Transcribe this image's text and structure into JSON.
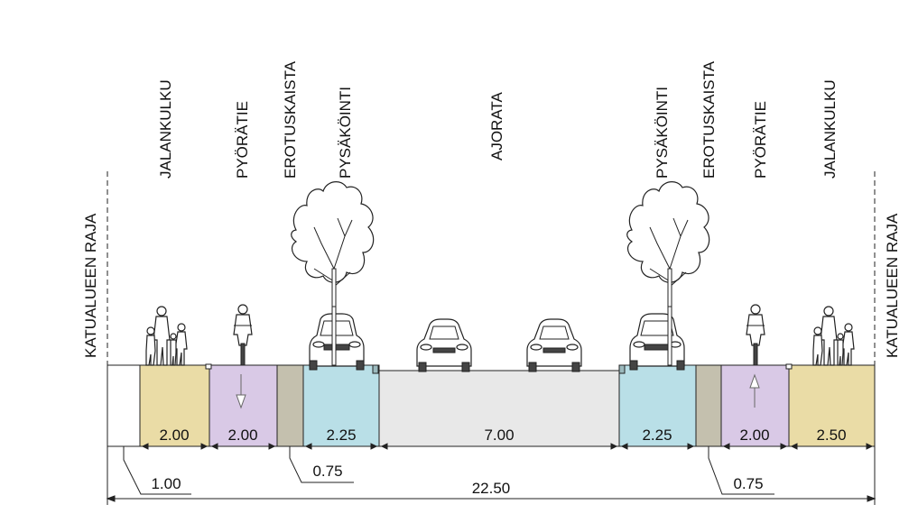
{
  "colors": {
    "sidewalk": "#eadca6",
    "bike": "#d9c9e6",
    "divider": "#c4c0ae",
    "parking": "#b9dfe7",
    "road": "#e8e8e8",
    "verge": "#ffffff",
    "line": "#222222"
  },
  "top_labels": {
    "boundary_left": "KATUALUEEN RAJA",
    "sidewalk_left": "JALANKULKU",
    "bike_left": "PYÖRÄTIE",
    "divider_left": "EROTUSKAISTA",
    "parking_left": "PYSÄKÖINTI",
    "road": "AJORATA",
    "parking_right": "PYSÄKÖINTI",
    "divider_right": "EROTUSKAISTA",
    "bike_right": "PYÖRÄTIE",
    "sidewalk_right": "JALANKULKU",
    "boundary_right": "KATUALUEEN RAJA"
  },
  "widths": {
    "verge_left": "1.00",
    "sidewalk_left": "2.00",
    "bike_left": "2.00",
    "divider_left": "0.75",
    "parking_left": "2.25",
    "road": "7.00",
    "parking_right": "2.25",
    "divider_right": "0.75",
    "bike_right": "2.00",
    "sidewalk_right": "2.50",
    "total": "22.50"
  },
  "icons": {
    "pedestrians": "pedestrians-icon",
    "cyclist": "cyclist-icon",
    "tree": "tree-icon",
    "car": "car-icon",
    "arrow": "direction-arrow-icon"
  }
}
